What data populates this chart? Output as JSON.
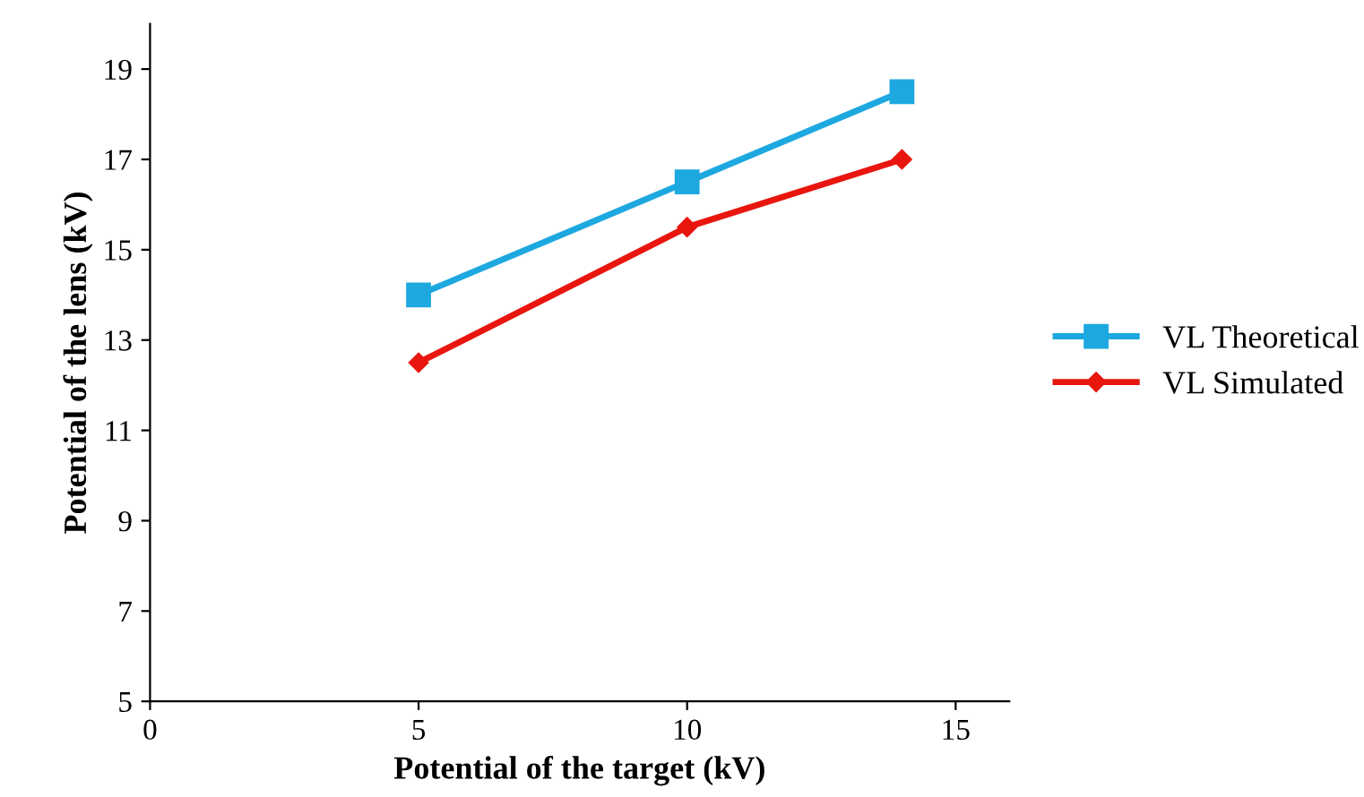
{
  "chart_data": {
    "type": "line",
    "xlabel": "Potential of the target (kV)",
    "ylabel": "Potential of the lens (kV)",
    "x": [
      5,
      10,
      14
    ],
    "series": [
      {
        "name": "VL Theoretical",
        "color": "#1ea8e0",
        "values": [
          14,
          16.5,
          18.5
        ],
        "marker": "square"
      },
      {
        "name": "VL Simulated",
        "color": "#e8160e",
        "values": [
          12.5,
          15.5,
          17
        ],
        "marker": "diamond"
      }
    ],
    "xlim": [
      0,
      16
    ],
    "xticks": [
      0,
      5,
      10,
      15
    ],
    "ylim": [
      5,
      20
    ],
    "yticks": [
      5,
      7,
      9,
      11,
      13,
      15,
      17,
      19
    ],
    "grid": false,
    "legend": "right",
    "line_style": "solid"
  }
}
